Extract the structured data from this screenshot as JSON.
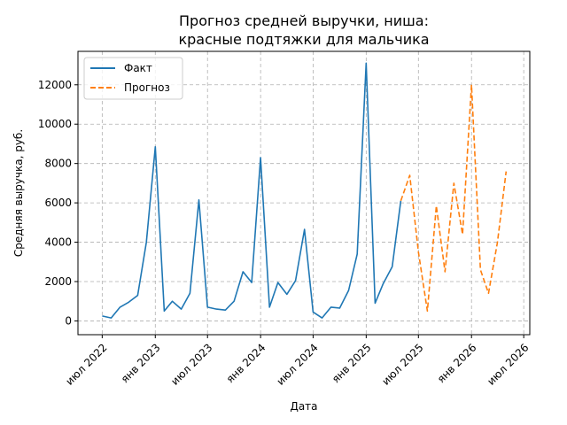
{
  "chart_data": {
    "type": "line",
    "title": [
      "Прогноз средней выручки, ниша:",
      "красные подтяжки для мальчика"
    ],
    "xlabel": "Дата",
    "ylabel": "Средняя выручка, руб.",
    "xlim": [
      "2022-04-08",
      "2026-07-22"
    ],
    "ylim": [
      -700,
      13700
    ],
    "yticks": [
      0,
      2000,
      4000,
      6000,
      8000,
      10000,
      12000
    ],
    "xticks": [
      {
        "date": "2022-07-01",
        "label": "июл 2022"
      },
      {
        "date": "2023-01-01",
        "label": "янв 2023"
      },
      {
        "date": "2023-07-01",
        "label": "июл 2023"
      },
      {
        "date": "2024-01-01",
        "label": "янв 2024"
      },
      {
        "date": "2024-07-01",
        "label": "июл 2024"
      },
      {
        "date": "2025-01-01",
        "label": "янв 2025"
      },
      {
        "date": "2025-07-01",
        "label": "июл 2025"
      },
      {
        "date": "2026-01-01",
        "label": "янв 2026"
      },
      {
        "date": "2026-07-01",
        "label": "июл 2026"
      }
    ],
    "grid": true,
    "legend": "top-left",
    "series": [
      {
        "name": "Факт",
        "color": "#1f77b4",
        "style": "solid",
        "points": [
          [
            "2022-07-01",
            250
          ],
          [
            "2022-08-01",
            150
          ],
          [
            "2022-09-01",
            700
          ],
          [
            "2022-10-01",
            950
          ],
          [
            "2022-11-01",
            1300
          ],
          [
            "2022-12-01",
            4000
          ],
          [
            "2023-01-01",
            8850
          ],
          [
            "2023-02-01",
            500
          ],
          [
            "2023-03-01",
            1000
          ],
          [
            "2023-04-01",
            600
          ],
          [
            "2023-05-01",
            1400
          ],
          [
            "2023-06-01",
            6150
          ],
          [
            "2023-07-01",
            700
          ],
          [
            "2023-08-01",
            600
          ],
          [
            "2023-09-01",
            550
          ],
          [
            "2023-10-01",
            1000
          ],
          [
            "2023-11-01",
            2500
          ],
          [
            "2023-12-01",
            1950
          ],
          [
            "2024-01-01",
            8300
          ],
          [
            "2024-02-01",
            700
          ],
          [
            "2024-03-01",
            1950
          ],
          [
            "2024-04-01",
            1350
          ],
          [
            "2024-05-01",
            2050
          ],
          [
            "2024-06-01",
            4650
          ],
          [
            "2024-07-01",
            450
          ],
          [
            "2024-08-01",
            150
          ],
          [
            "2024-09-01",
            700
          ],
          [
            "2024-10-01",
            650
          ],
          [
            "2024-11-01",
            1550
          ],
          [
            "2024-12-01",
            3400
          ],
          [
            "2025-01-01",
            13100
          ],
          [
            "2025-02-01",
            900
          ],
          [
            "2025-03-01",
            1900
          ],
          [
            "2025-04-01",
            2750
          ],
          [
            "2025-05-01",
            6100
          ]
        ]
      },
      {
        "name": "Прогноз",
        "color": "#ff7f0e",
        "style": "dashed",
        "points": [
          [
            "2025-05-01",
            6100
          ],
          [
            "2025-06-01",
            7400
          ],
          [
            "2025-07-01",
            3500
          ],
          [
            "2025-08-01",
            500
          ],
          [
            "2025-09-01",
            5850
          ],
          [
            "2025-10-01",
            2500
          ],
          [
            "2025-11-01",
            7000
          ],
          [
            "2025-12-01",
            4400
          ],
          [
            "2026-01-01",
            12000
          ],
          [
            "2026-02-01",
            2600
          ],
          [
            "2026-03-01",
            1400
          ],
          [
            "2026-04-01",
            4000
          ],
          [
            "2026-05-01",
            7600
          ]
        ]
      }
    ]
  }
}
